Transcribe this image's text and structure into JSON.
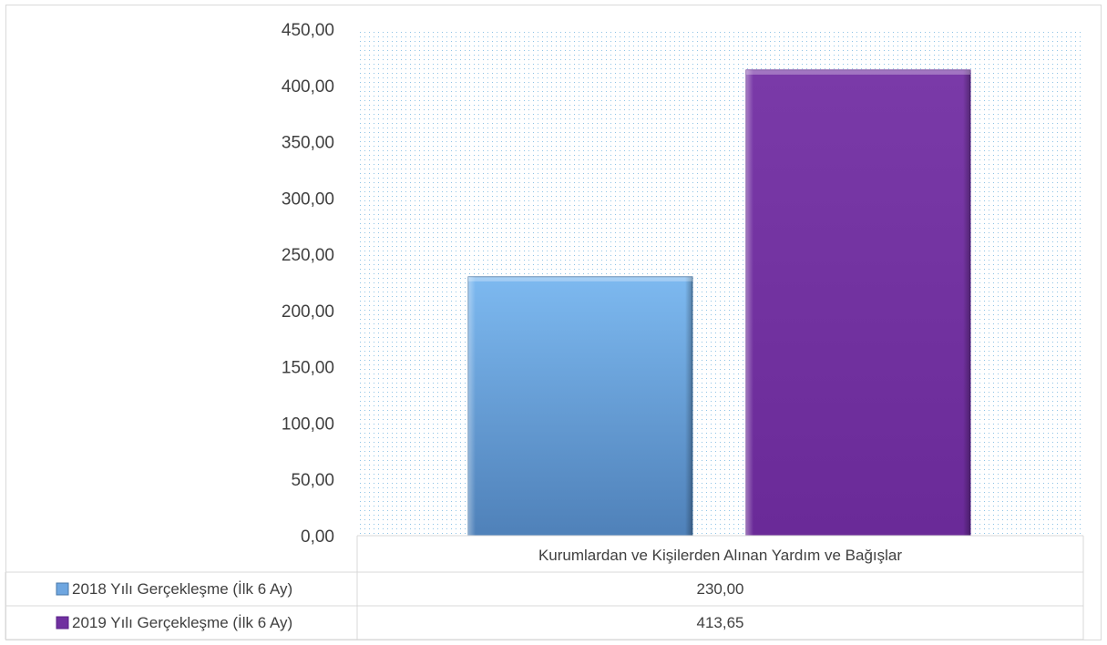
{
  "chart_data": {
    "type": "bar",
    "title": "",
    "xlabel": "",
    "ylabel": "",
    "categories": [
      "Kurumlardan ve Kişilerden Alınan Yardım ve Bağışlar"
    ],
    "ylim": [
      0,
      450
    ],
    "yticks": [
      "0,00",
      "50,00",
      "100,00",
      "150,00",
      "200,00",
      "250,00",
      "300,00",
      "350,00",
      "400,00",
      "450,00"
    ],
    "grid": false,
    "legend": "data-table-bottom",
    "series": [
      {
        "name": "2018 Yılı Gerçekleşme (İlk 6 Ay)",
        "values": [
          230.0
        ],
        "value_labels": [
          "230,00"
        ],
        "color": "#6ea6e0"
      },
      {
        "name": "2019 Yılı Gerçekleşme (İlk 6 Ay)",
        "values": [
          413.65
        ],
        "value_labels": [
          "413,65"
        ],
        "color": "#7030a0"
      }
    ]
  }
}
